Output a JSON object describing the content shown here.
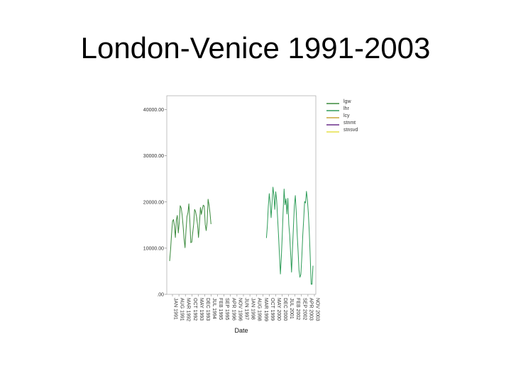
{
  "slide": {
    "title": "London-Venice 1991-2003"
  },
  "chart_data": {
    "type": "line",
    "title": "",
    "xlabel": "Date",
    "ylabel": "",
    "ylim": [
      0,
      43000
    ],
    "yticks": [
      0,
      10000,
      20000,
      30000,
      40000
    ],
    "ytick_labels": [
      ".00",
      "10000.00",
      "20000.00",
      "30000.00",
      "40000.00"
    ],
    "x_tick_labels": [
      "JAN 1991",
      "AUG 1991",
      "MAR 1992",
      "OCT 1992",
      "MAY 1993",
      "DEC 1993",
      "JUL 1994",
      "FEB 1995",
      "SEP 1995",
      "APR 1996",
      "NOV 1996",
      "JUN 1997",
      "JAN 1998",
      "AUG 1998",
      "MAR 1999",
      "OCT 1999",
      "MAY 2000",
      "DEC 2000",
      "JUL 2001",
      "FEB 2002",
      "SEP 2002",
      "APR 2003",
      "NOV 2003"
    ],
    "grid": false,
    "legend_position": "top-right",
    "series": [
      {
        "name": "lgw",
        "color": "#3a8a3c",
        "values": [
          7200,
          9800,
          13000,
          15800,
          16200,
          14800,
          12300,
          16100,
          17100,
          13300,
          15500,
          19200,
          18700,
          17200,
          14800,
          12100,
          10100,
          13600,
          16800,
          17700,
          19600,
          15900,
          11200,
          11300,
          13300,
          15200,
          18400,
          17900,
          16700,
          15100,
          12300,
          15200,
          18800,
          17300,
          18500,
          19300,
          19100,
          15100,
          13800,
          15700,
          20600,
          19300,
          17600,
          15200,
          null,
          null,
          null,
          null,
          null,
          null,
          null,
          null,
          null,
          null,
          null,
          null,
          null,
          null,
          null,
          null,
          null,
          null,
          null,
          null,
          null,
          null,
          null,
          null,
          null,
          null,
          null,
          null,
          null,
          null,
          null,
          null,
          null,
          null,
          null,
          null,
          null,
          null,
          null,
          null,
          null,
          null,
          null,
          null,
          null,
          null,
          null,
          null,
          null,
          null,
          null,
          null,
          null,
          null,
          null,
          null,
          null,
          null,
          null,
          null,
          null,
          null,
          null,
          null,
          null,
          null,
          null,
          null,
          null,
          null,
          null,
          null,
          null,
          null,
          null,
          null,
          null,
          null,
          null,
          null,
          null,
          null,
          null,
          null,
          null,
          null,
          null,
          null,
          null,
          null,
          null,
          null,
          null,
          null,
          null,
          null,
          null,
          null,
          null,
          null,
          null,
          null,
          null,
          null,
          null,
          null
        ]
      },
      {
        "name": "lhr",
        "color": "#2e9c58",
        "values": [
          null,
          null,
          null,
          null,
          null,
          null,
          null,
          null,
          null,
          null,
          null,
          null,
          null,
          null,
          null,
          null,
          null,
          null,
          null,
          null,
          null,
          null,
          null,
          null,
          null,
          null,
          null,
          null,
          null,
          null,
          null,
          null,
          null,
          null,
          null,
          null,
          null,
          null,
          null,
          null,
          null,
          null,
          null,
          null,
          null,
          null,
          null,
          null,
          null,
          null,
          null,
          null,
          null,
          null,
          null,
          null,
          null,
          null,
          null,
          null,
          null,
          null,
          null,
          null,
          null,
          null,
          null,
          null,
          null,
          null,
          null,
          null,
          null,
          null,
          null,
          null,
          null,
          null,
          null,
          null,
          null,
          null,
          null,
          null,
          null,
          null,
          null,
          null,
          null,
          null,
          null,
          null,
          null,
          null,
          null,
          null,
          null,
          null,
          null,
          null,
          null,
          null,
          null,
          null,
          12200,
          14800,
          19000,
          21800,
          19800,
          16600,
          19800,
          23200,
          21500,
          18400,
          22200,
          20400,
          16400,
          12600,
          8400,
          4400,
          8000,
          12800,
          18200,
          22800,
          19400,
          20700,
          17400,
          20800,
          15200,
          12800,
          8800,
          4800,
          9700,
          14800,
          19200,
          21400,
          17800,
          13100,
          9400,
          5200,
          3700,
          4300,
          8200,
          12800,
          16200,
          20100,
          19800,
          22300,
          20500,
          17700,
          13400,
          8200,
          2200,
          2200,
          6200
        ]
      },
      {
        "name": "lcy",
        "color": "#c9a53a",
        "values": [
          null,
          null,
          null,
          null,
          null,
          null,
          null,
          null,
          null,
          null,
          null,
          null,
          null,
          null,
          null,
          null,
          null,
          null,
          null,
          null,
          null,
          null,
          null,
          null,
          null,
          null,
          null,
          null,
          null,
          null,
          null,
          null,
          null,
          null,
          null,
          null,
          null,
          null,
          null,
          null,
          null,
          null,
          null,
          null,
          null,
          null,
          null,
          null,
          null,
          null,
          null,
          null,
          null,
          null,
          null,
          null,
          null,
          null,
          null,
          null,
          null,
          null,
          null,
          null,
          null,
          null,
          null,
          null,
          null,
          null,
          null,
          null,
          null,
          null,
          null,
          null,
          null,
          null,
          null,
          null,
          null,
          null,
          null,
          null,
          null,
          null,
          null,
          null,
          null,
          null,
          null,
          null,
          null,
          null,
          null,
          null,
          null,
          null,
          null,
          null,
          null,
          null,
          null,
          null,
          null,
          null,
          null,
          null,
          null,
          null,
          null,
          null,
          null,
          null,
          null,
          null,
          null,
          null,
          null,
          null,
          null,
          null,
          null,
          null,
          null,
          null,
          null,
          null,
          null,
          null,
          null,
          null,
          null,
          null,
          null,
          null,
          null,
          null,
          null,
          null,
          null,
          null,
          null,
          null,
          null,
          null,
          null,
          null,
          null,
          null,
          null,
          null,
          null,
          null,
          null,
          null
        ]
      },
      {
        "name": "stnmt",
        "color": "#6a2f8a",
        "values": [
          null,
          null,
          null,
          null,
          null,
          null,
          null,
          null,
          null,
          null,
          null,
          null,
          null,
          null,
          null,
          null,
          null,
          null,
          null,
          null,
          null,
          null,
          null,
          null,
          null,
          null,
          null,
          null,
          null,
          null,
          null,
          null,
          null,
          null,
          null,
          null,
          null,
          null,
          null,
          null,
          null,
          null,
          null,
          null,
          null,
          null,
          null,
          null,
          null,
          null,
          null,
          null,
          null,
          null,
          null,
          null,
          null,
          null,
          null,
          null,
          null,
          null,
          null,
          null,
          null,
          null,
          null,
          null,
          null,
          null,
          null,
          null,
          null,
          null,
          null,
          null,
          null,
          null,
          null,
          null,
          null,
          null,
          null,
          null,
          null,
          null,
          null,
          null,
          null,
          null,
          null,
          null,
          null,
          null,
          null,
          null,
          null,
          null,
          null,
          null,
          null,
          null,
          null,
          null,
          null,
          null,
          null,
          null,
          null,
          null,
          null,
          null,
          null,
          null,
          null,
          null,
          null,
          null,
          null,
          null,
          null,
          null,
          null,
          null,
          null,
          null,
          null,
          null,
          null,
          null,
          null,
          null,
          null,
          null,
          null,
          null,
          null,
          null,
          null,
          null,
          null,
          null,
          null,
          null,
          null,
          null,
          null,
          null,
          null,
          null,
          null,
          null,
          null,
          null,
          null,
          null
        ]
      },
      {
        "name": "stnsvd",
        "color": "#e6e048",
        "values": [
          null,
          null,
          null,
          null,
          null,
          null,
          null,
          null,
          null,
          null,
          null,
          null,
          null,
          null,
          null,
          null,
          null,
          null,
          null,
          null,
          null,
          null,
          null,
          null,
          null,
          null,
          null,
          null,
          null,
          null,
          null,
          null,
          null,
          null,
          null,
          null,
          null,
          null,
          null,
          null,
          null,
          null,
          null,
          null,
          null,
          null,
          null,
          null,
          null,
          null,
          null,
          null,
          null,
          null,
          null,
          null,
          null,
          null,
          null,
          null,
          null,
          null,
          null,
          null,
          null,
          null,
          null,
          null,
          null,
          null,
          null,
          null,
          null,
          null,
          null,
          null,
          null,
          null,
          null,
          null,
          null,
          null,
          null,
          null,
          null,
          null,
          null,
          null,
          null,
          null,
          null,
          null,
          null,
          null,
          null,
          null,
          null,
          null,
          null,
          null,
          null,
          null,
          null,
          null,
          null,
          null,
          null,
          null,
          null,
          null,
          null,
          null,
          null,
          null,
          null,
          null,
          null,
          null,
          null,
          null,
          null,
          null,
          null,
          null,
          null,
          null,
          null,
          null,
          null,
          null,
          null,
          null,
          null,
          null,
          null,
          null,
          null,
          null,
          null,
          null,
          null,
          null,
          null,
          null,
          null,
          null,
          null,
          null,
          null,
          null,
          null,
          null,
          null,
          null,
          null,
          null
        ]
      }
    ]
  }
}
